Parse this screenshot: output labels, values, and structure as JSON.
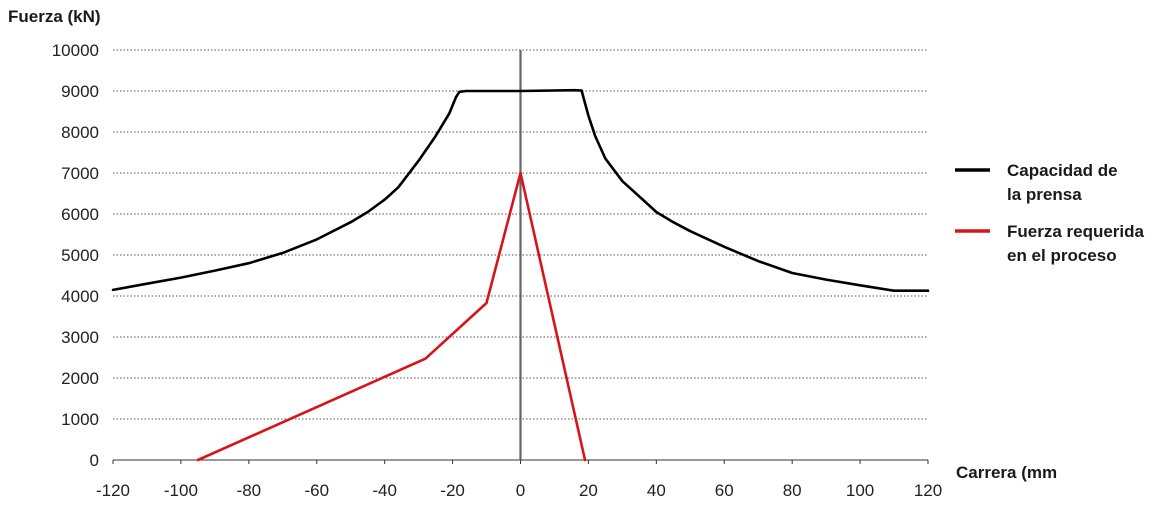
{
  "chart_data": {
    "type": "line",
    "ylabel": "Fuerza (kN)",
    "xlabel": "Carrera (mm",
    "xlim": [
      -120,
      120
    ],
    "ylim": [
      0,
      10000
    ],
    "x_ticks": [
      -120,
      -100,
      -80,
      -60,
      -40,
      -20,
      0,
      20,
      40,
      60,
      80,
      100,
      120
    ],
    "y_ticks": [
      0,
      1000,
      2000,
      3000,
      4000,
      5000,
      6000,
      7000,
      8000,
      9000,
      10000
    ],
    "grid": "horizontal",
    "legend_position": "right",
    "series": [
      {
        "name_lines": [
          "Capacidad de",
          "la prensa"
        ],
        "color": "#000000",
        "x": [
          -120,
          -110,
          -100,
          -90,
          -80,
          -70,
          -60,
          -50,
          -45,
          -40,
          -36,
          -30,
          -25,
          -21,
          -19,
          -18,
          -16,
          0,
          16,
          18,
          20,
          22,
          25,
          30,
          36,
          40,
          45,
          50,
          60,
          70,
          80,
          90,
          100,
          110,
          120
        ],
        "y": [
          4150,
          4300,
          4450,
          4620,
          4800,
          5050,
          5380,
          5800,
          6050,
          6350,
          6650,
          7300,
          7900,
          8450,
          8850,
          8980,
          9000,
          9000,
          9020,
          9010,
          8400,
          7900,
          7350,
          6800,
          6350,
          6050,
          5800,
          5580,
          5200,
          4850,
          4560,
          4400,
          4260,
          4130,
          4130
        ]
      },
      {
        "name_lines": [
          "Fuerza requerida",
          "en el proceso"
        ],
        "color": "#d7141a",
        "x": [
          -95,
          -28,
          -10,
          0,
          19
        ],
        "y": [
          0,
          2470,
          3830,
          7000,
          0
        ]
      }
    ]
  }
}
